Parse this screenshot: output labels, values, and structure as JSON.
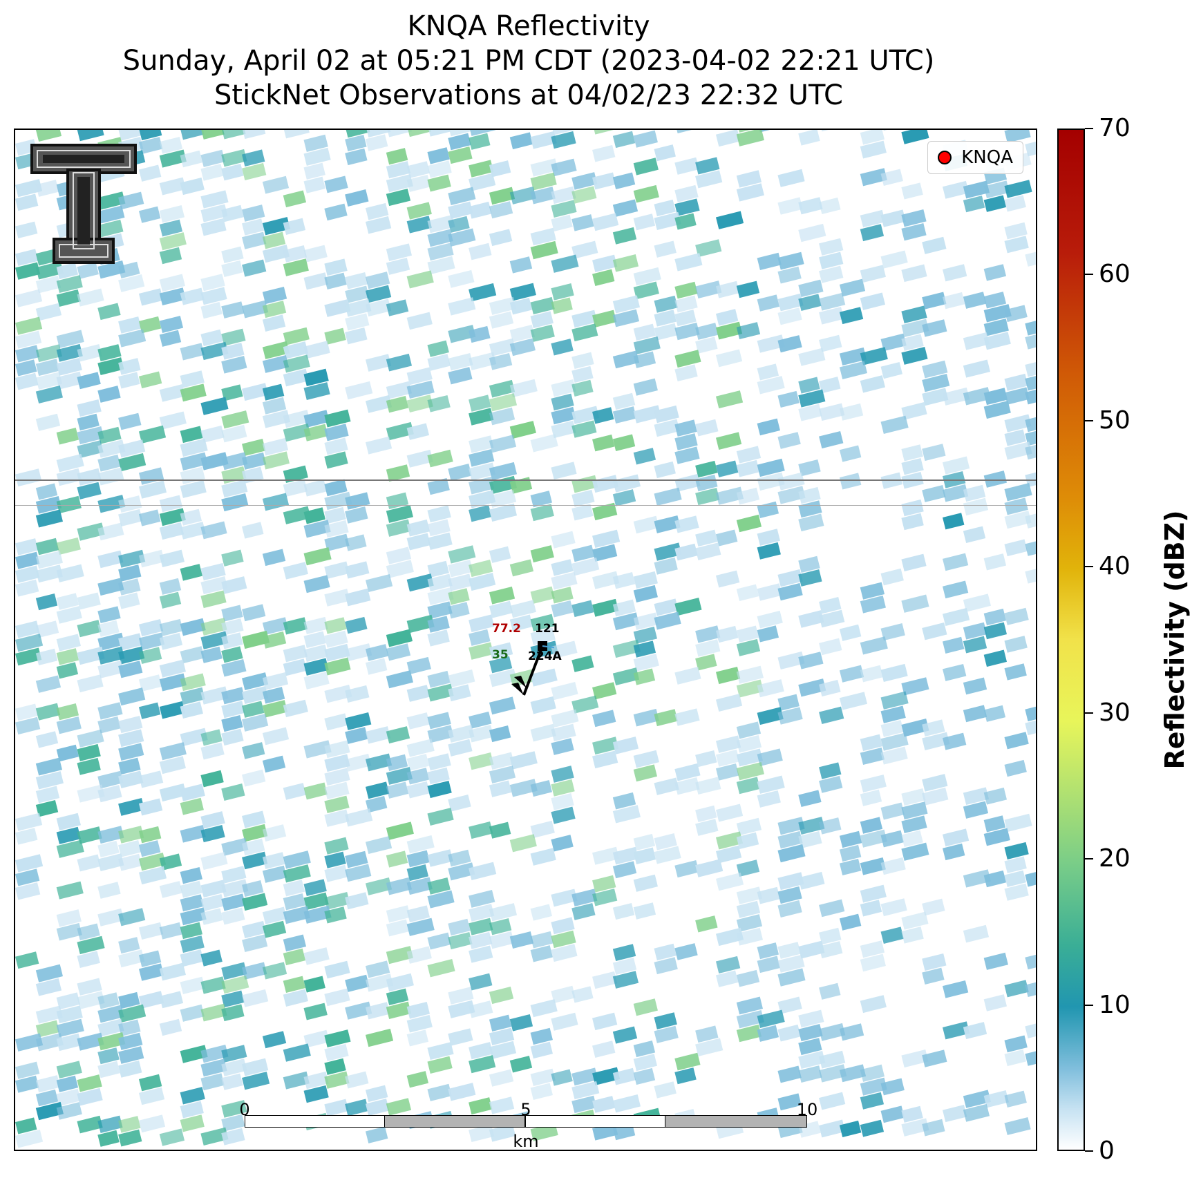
{
  "title": {
    "line1": "KNQA Reflectivity",
    "line2": "Sunday, April 02 at 05:21 PM CDT (2023-04-02 22:21 UTC)",
    "line3": "StickNet Observations at 04/02/23 22:32 UTC"
  },
  "legend": {
    "label": "KNQA",
    "marker_color": "#ff0000"
  },
  "logo": {
    "name": "Texas Tech double-T logo"
  },
  "station": {
    "id": "224A",
    "temperature": "77.2",
    "dewpoint": "35",
    "pressure": "121",
    "temperature_color": "#b00000",
    "dewpoint_color": "#1a6b1a"
  },
  "colorbar": {
    "label": "Reflectivity (dBZ)",
    "ticks": [
      "0",
      "10",
      "20",
      "30",
      "40",
      "50",
      "60",
      "70"
    ],
    "min": 0,
    "max": 70
  },
  "scalebar": {
    "ticks": [
      "0",
      "5",
      "10"
    ],
    "unit": "km"
  },
  "colors": {
    "light_blue": "#c6e2f2",
    "medium_blue": "#7fbedc",
    "teal": "#2a9bb3",
    "teal_green": "#44b49a",
    "green": "#7fcf8a"
  }
}
